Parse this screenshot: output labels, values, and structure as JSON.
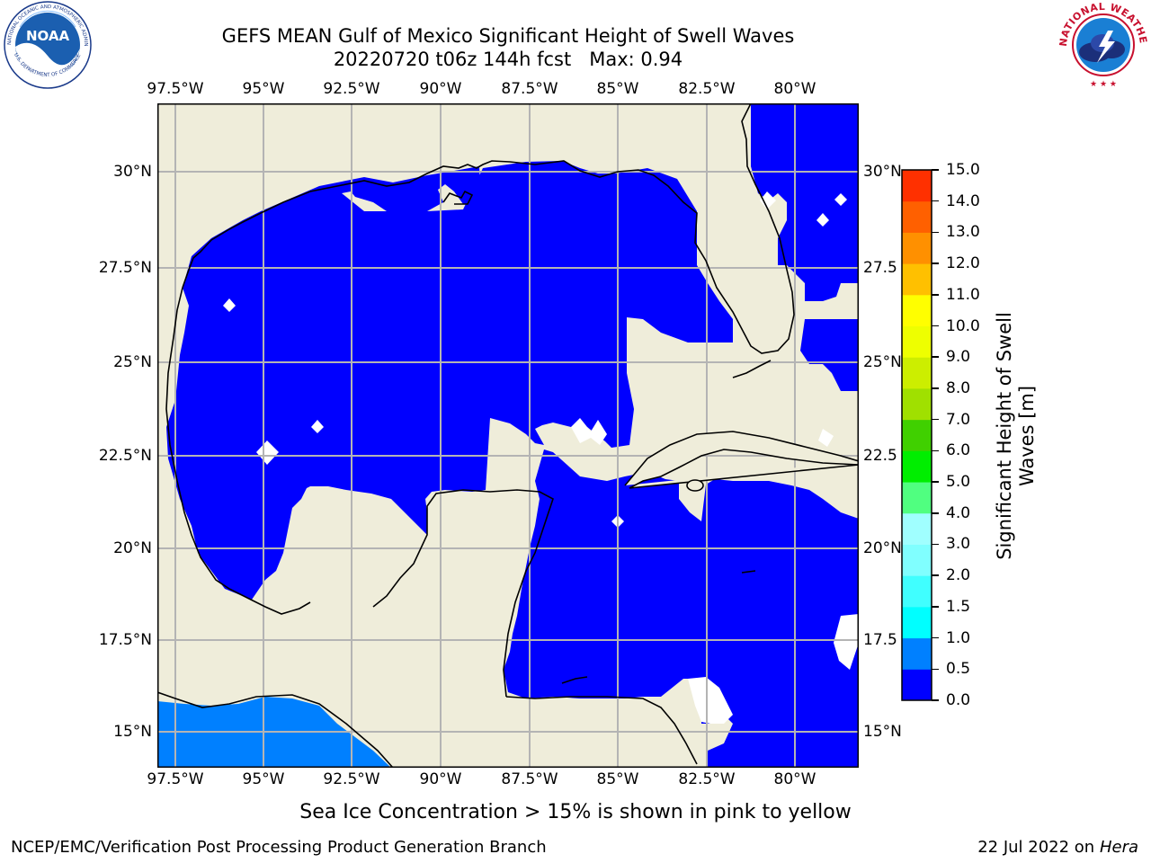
{
  "title": {
    "line1": "GEFS MEAN Gulf of Mexico Significant Height of Swell Waves",
    "line2": "20220720 t06z 144h fcst   Max: 0.94"
  },
  "logos": {
    "left": {
      "name": "noaa-logo",
      "text": "NOAA",
      "ring_text": "NATIONAL OCEANIC AND ATMOSPHERIC ADMINISTRATION · U.S. DEPARTMENT OF COMMERCE"
    },
    "right": {
      "name": "nws-logo",
      "ring_text": "NATIONAL WEATHER SERVICE"
    }
  },
  "map": {
    "lon_ticks": [
      "97.5°W",
      "95°W",
      "92.5°W",
      "90°W",
      "87.5°W",
      "85°W",
      "82.5°W",
      "80°W"
    ],
    "lat_ticks_left": [
      "30°N",
      "27.5°N",
      "25°N",
      "22.5°N",
      "20°N",
      "17.5°N",
      "15°N"
    ],
    "lat_ticks_right": [
      "30°N",
      "27.5",
      "25°N",
      "22.5",
      "20°N",
      "17.5",
      "15°N"
    ],
    "colors": {
      "land": "#efedda",
      "ocean_low": "#0000ff",
      "ocean_mid": "#0080ff",
      "gridlines": "#b4b4b4",
      "coast": "#000000"
    }
  },
  "colorbar": {
    "label": "Significant Height of Swell Waves [m]",
    "label_lines": [
      "Significant Height of Swell",
      "Waves [m]"
    ],
    "ticks": [
      "0.0",
      "0.5",
      "1.0",
      "1.5",
      "2.0",
      "3.0",
      "4.0",
      "5.0",
      "6.0",
      "7.0",
      "8.0",
      "9.0",
      "10.0",
      "11.0",
      "12.0",
      "13.0",
      "14.0",
      "15.0"
    ],
    "colors": [
      "#0000ff",
      "#0080ff",
      "#00ffff",
      "#40ffff",
      "#80ffff",
      "#a0ffff",
      "#50ff80",
      "#00ee00",
      "#40d000",
      "#a0e000",
      "#ccee00",
      "#eeff00",
      "#ffff00",
      "#ffc000",
      "#ff9000",
      "#ff6000",
      "#ff3000",
      "#ff0000"
    ]
  },
  "footnote": "Sea Ice Concentration > 15% is shown in pink to yellow",
  "credit": {
    "left": "NCEP/EMC/Verification Post Processing Product Generation Branch",
    "right_prefix": "22 Jul 2022 on ",
    "right_host": "Hera"
  }
}
